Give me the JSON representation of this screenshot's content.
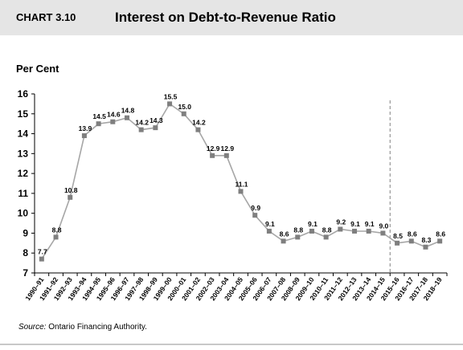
{
  "header": {
    "chart_label": "CHART 3.10",
    "title": "Interest on Debt-to-Revenue Ratio"
  },
  "source": {
    "prefix": "Source:",
    "text": " Ontario Financing Authority."
  },
  "colors": {
    "line": "#a6a6a6",
    "marker": "#7f7f7f",
    "axis": "#000000",
    "divider": "#808080",
    "header_background": "#e5e5e5"
  },
  "chart_data": {
    "type": "line",
    "title": "Interest on Debt-to-Revenue Ratio",
    "xlabel": "",
    "ylabel": "Per Cent",
    "ylim": [
      7,
      16
    ],
    "yticks": [
      7,
      8,
      9,
      10,
      11,
      12,
      13,
      14,
      15,
      16
    ],
    "grid": false,
    "legend": "none",
    "categories": [
      "1990–91",
      "1991–92",
      "1992–93",
      "1993–94",
      "1994–95",
      "1995–96",
      "1996–97",
      "1997–98",
      "1998–99",
      "1999–00",
      "2000–01",
      "2001–02",
      "2002–03",
      "2003–04",
      "2004–05",
      "2005–06",
      "2006–07",
      "2007–08",
      "2008–09",
      "2009–10",
      "2010–11",
      "2011–12",
      "2012–13",
      "2013–14",
      "2014–15",
      "2015–16",
      "2016–17",
      "2017–18",
      "2018–19"
    ],
    "values": [
      7.7,
      8.8,
      10.8,
      13.9,
      14.5,
      14.6,
      14.8,
      14.2,
      14.3,
      15.5,
      15.0,
      14.2,
      12.9,
      12.9,
      11.1,
      9.9,
      9.1,
      8.6,
      8.8,
      9.1,
      8.8,
      9.2,
      9.1,
      9.1,
      9.0,
      8.5,
      8.6,
      8.3,
      8.6
    ],
    "data_labels": [
      "7.7",
      "8.8",
      "10.8",
      "13.9",
      "14.5",
      "14.6",
      "14.8",
      "14.2",
      "14.3",
      "15.5",
      "15.0",
      "14.2",
      "12.9",
      "12.9",
      "11.1",
      "9.9",
      "9.1",
      "8.6",
      "8.8",
      "9.1",
      "8.8",
      "9.2",
      "9.1",
      "9.1",
      "9.0",
      "8.5",
      "8.6",
      "8.3",
      "8.6"
    ],
    "divider_between": [
      "2014–15",
      "2015–16"
    ]
  }
}
